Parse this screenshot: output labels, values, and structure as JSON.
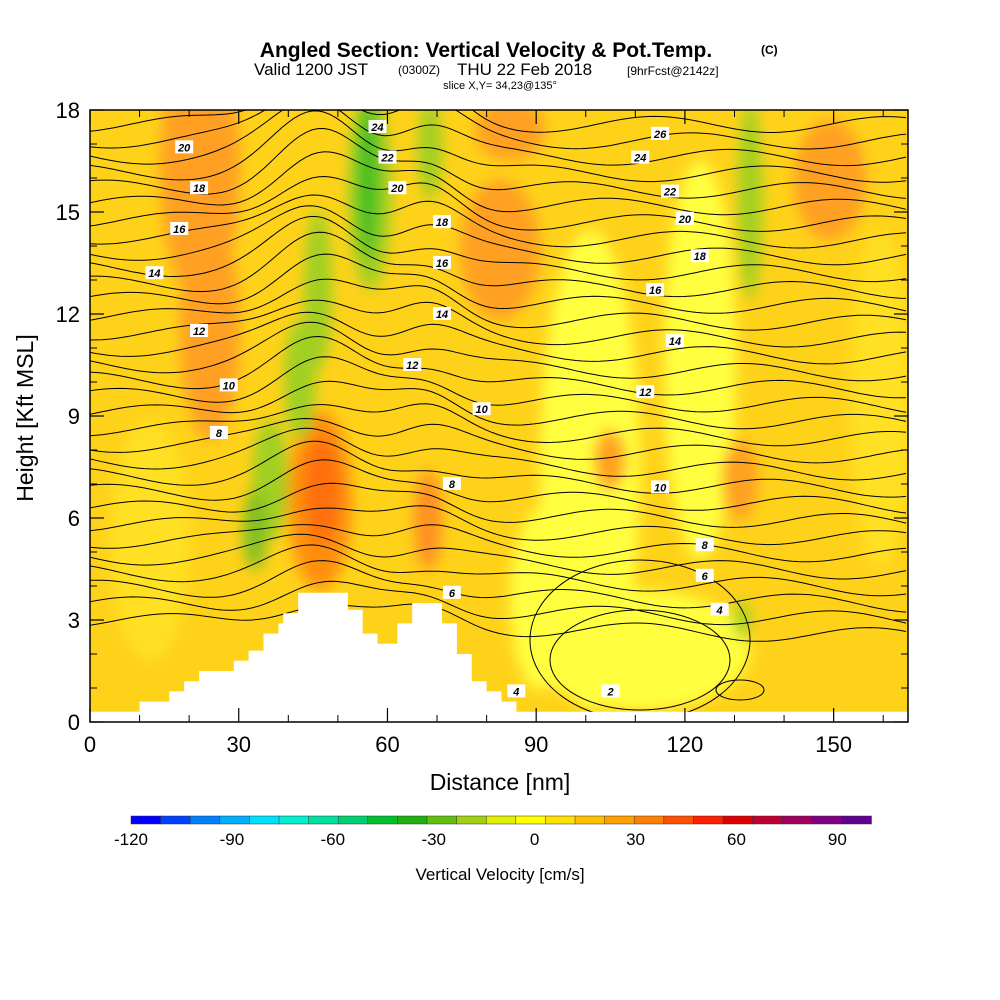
{
  "header": {
    "title": "Angled Section: Vertical Velocity & Pot.Temp.",
    "title_tag": "(C)",
    "valid_prefix": "Valid 1200 JST",
    "valid_utc": "(0300Z)",
    "valid_date": "THU 22 Feb 2018",
    "forecast": "[9hrFcst@2142z]",
    "slice": "slice X,Y= 34,23@135°"
  },
  "chart_data": {
    "type": "heatmap",
    "xlabel": "Distance [nm]",
    "ylabel": "Height [Kft MSL]",
    "xlim": [
      0,
      165
    ],
    "ylim": [
      0,
      18
    ],
    "x_ticks": [
      0,
      30,
      60,
      90,
      120,
      150
    ],
    "y_ticks": [
      0,
      3,
      6,
      9,
      12,
      15,
      18
    ],
    "terrain_kft": [
      [
        0,
        0.3
      ],
      [
        10,
        0.3
      ],
      [
        10,
        0.6
      ],
      [
        16,
        0.6
      ],
      [
        16,
        0.9
      ],
      [
        19,
        0.9
      ],
      [
        19,
        1.2
      ],
      [
        22,
        1.2
      ],
      [
        22,
        1.5
      ],
      [
        29,
        1.5
      ],
      [
        29,
        1.8
      ],
      [
        32,
        1.8
      ],
      [
        32,
        2.1
      ],
      [
        35,
        2.1
      ],
      [
        35,
        2.6
      ],
      [
        38,
        2.6
      ],
      [
        38,
        2.9
      ],
      [
        39,
        2.9
      ],
      [
        39,
        3.2
      ],
      [
        42,
        3.2
      ],
      [
        42,
        3.8
      ],
      [
        52,
        3.8
      ],
      [
        52,
        3.3
      ],
      [
        55,
        3.3
      ],
      [
        55,
        2.6
      ],
      [
        58,
        2.6
      ],
      [
        58,
        2.3
      ],
      [
        62,
        2.3
      ],
      [
        62,
        2.9
      ],
      [
        65,
        2.9
      ],
      [
        65,
        3.5
      ],
      [
        71,
        3.5
      ],
      [
        71,
        2.9
      ],
      [
        74,
        2.9
      ],
      [
        74,
        2.0
      ],
      [
        77,
        2.0
      ],
      [
        77,
        1.2
      ],
      [
        80,
        1.2
      ],
      [
        80,
        0.9
      ],
      [
        83,
        0.9
      ],
      [
        83,
        0.6
      ],
      [
        86,
        0.6
      ],
      [
        86,
        0.3
      ],
      [
        165,
        0.3
      ]
    ],
    "colorbar": {
      "title": "Vertical Velocity [cm/s]",
      "tick_labels": [
        "-120",
        "-90",
        "-60",
        "-30",
        "0",
        "30",
        "60",
        "90"
      ],
      "range": [
        -120,
        100
      ],
      "colors": [
        "#0000ff",
        "#0040ff",
        "#0080ff",
        "#00b0ff",
        "#00e0ff",
        "#00f0d0",
        "#00e0a0",
        "#00d070",
        "#00c030",
        "#20b010",
        "#60c010",
        "#a0d010",
        "#e0f000",
        "#ffff00",
        "#ffe000",
        "#ffc000",
        "#ffa000",
        "#ff8000",
        "#ff5000",
        "#ff2000",
        "#e00000",
        "#c00030",
        "#a00060",
        "#800080",
        "#600090"
      ]
    },
    "contour_labels": [
      {
        "text": "24",
        "x": 58,
        "y": 17.5
      },
      {
        "text": "22",
        "x": 60,
        "y": 16.6
      },
      {
        "text": "20",
        "x": 62,
        "y": 15.7
      },
      {
        "text": "20",
        "x": 19,
        "y": 16.9
      },
      {
        "text": "18",
        "x": 22,
        "y": 15.7
      },
      {
        "text": "16",
        "x": 18,
        "y": 14.5
      },
      {
        "text": "14",
        "x": 13,
        "y": 13.2
      },
      {
        "text": "12",
        "x": 22,
        "y": 11.5
      },
      {
        "text": "10",
        "x": 28,
        "y": 9.9
      },
      {
        "text": "8",
        "x": 26,
        "y": 8.5
      },
      {
        "text": "18",
        "x": 71,
        "y": 14.7
      },
      {
        "text": "16",
        "x": 71,
        "y": 13.5
      },
      {
        "text": "14",
        "x": 71,
        "y": 12.0
      },
      {
        "text": "12",
        "x": 65,
        "y": 10.5
      },
      {
        "text": "10",
        "x": 79,
        "y": 9.2
      },
      {
        "text": "8",
        "x": 73,
        "y": 7.0
      },
      {
        "text": "6",
        "x": 73,
        "y": 3.8
      },
      {
        "text": "4",
        "x": 86,
        "y": 0.9
      },
      {
        "text": "26",
        "x": 115,
        "y": 17.3
      },
      {
        "text": "24",
        "x": 111,
        "y": 16.6
      },
      {
        "text": "22",
        "x": 117,
        "y": 15.6
      },
      {
        "text": "20",
        "x": 120,
        "y": 14.8
      },
      {
        "text": "18",
        "x": 123,
        "y": 13.7
      },
      {
        "text": "16",
        "x": 114,
        "y": 12.7
      },
      {
        "text": "14",
        "x": 118,
        "y": 11.2
      },
      {
        "text": "12",
        "x": 112,
        "y": 9.7
      },
      {
        "text": "10",
        "x": 115,
        "y": 6.9
      },
      {
        "text": "8",
        "x": 124,
        "y": 5.2
      },
      {
        "text": "6",
        "x": 124,
        "y": 4.3
      },
      {
        "text": "4",
        "x": 127,
        "y": 3.3
      },
      {
        "text": "2",
        "x": 105,
        "y": 0.9
      }
    ]
  }
}
